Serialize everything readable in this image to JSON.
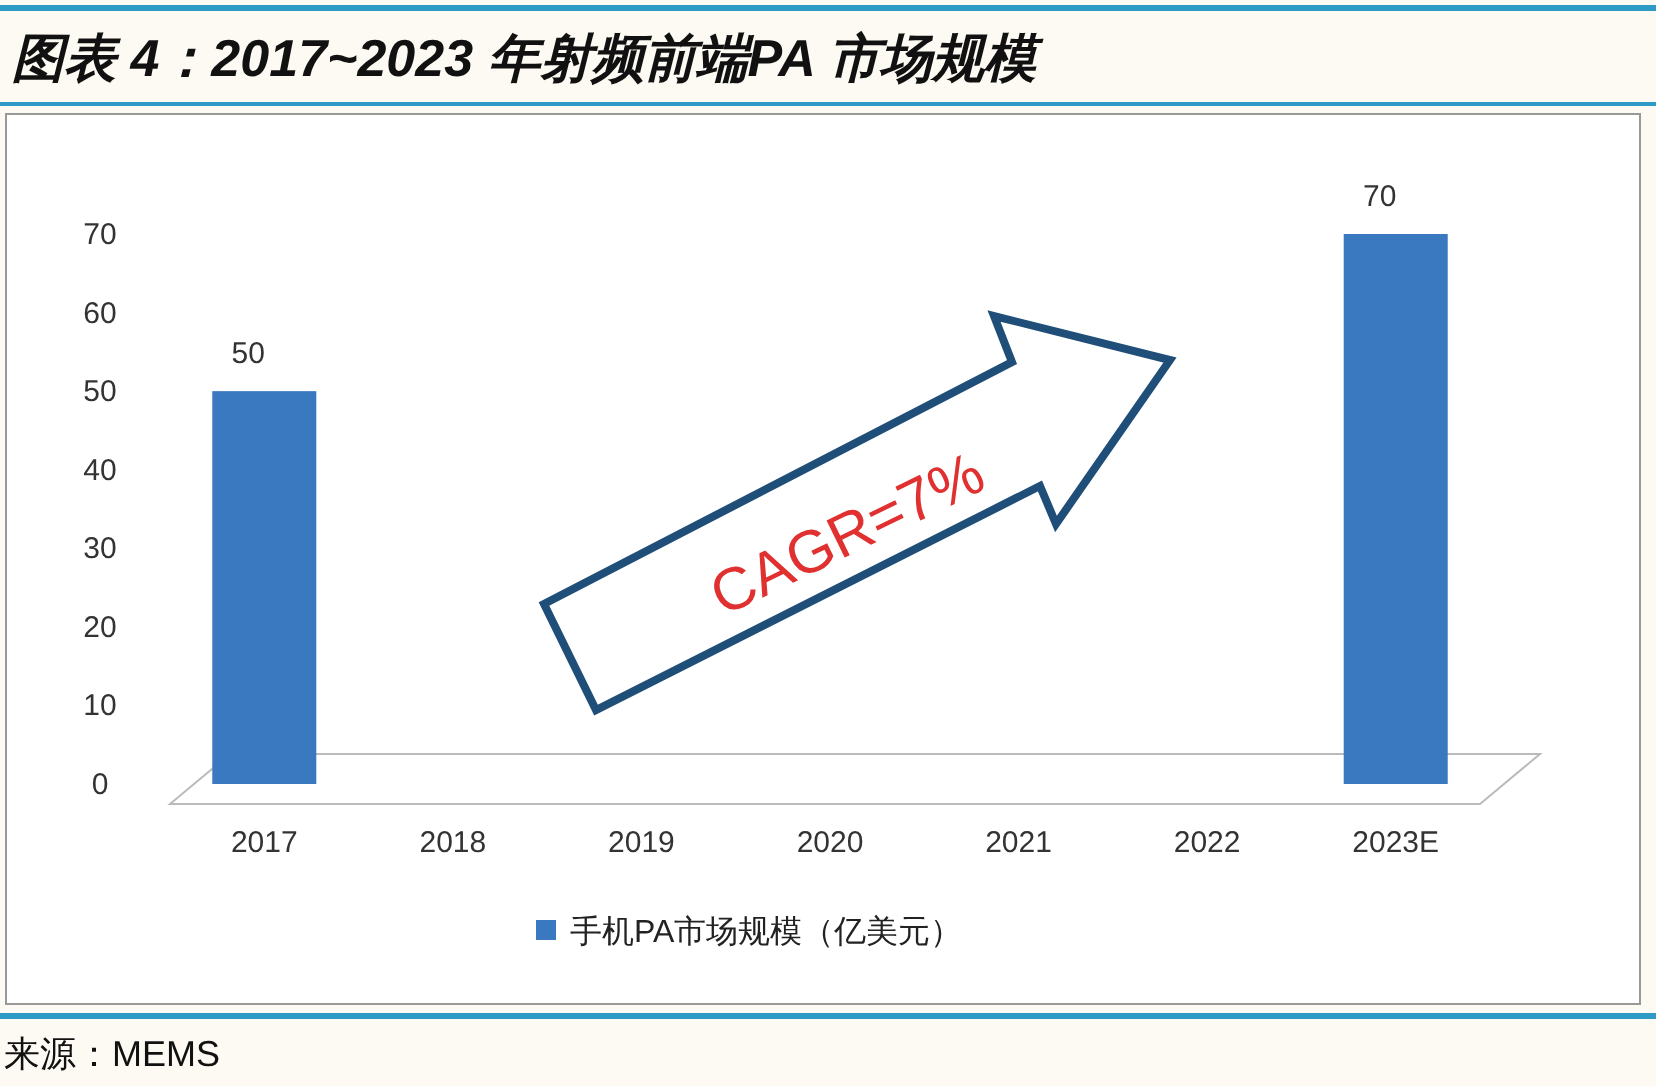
{
  "chart_data": {
    "type": "bar",
    "title": "图表 4：2017~2023 年射频前端PA 市场规模",
    "categories": [
      "2017",
      "2018",
      "2019",
      "2020",
      "2021",
      "2022",
      "2023E"
    ],
    "series": [
      {
        "name": "手机PA市场规模（亿美元）",
        "color": "#3a78c0",
        "values": [
          50,
          null,
          null,
          null,
          null,
          null,
          70
        ]
      }
    ],
    "ylim": [
      0,
      70
    ],
    "yticks": [
      0,
      10,
      20,
      30,
      40,
      50,
      60,
      70
    ],
    "data_labels": true,
    "legend": "bottom",
    "grid": false,
    "annotations": [
      "CAGR=7%",
      "来源：MEMS"
    ]
  }
}
